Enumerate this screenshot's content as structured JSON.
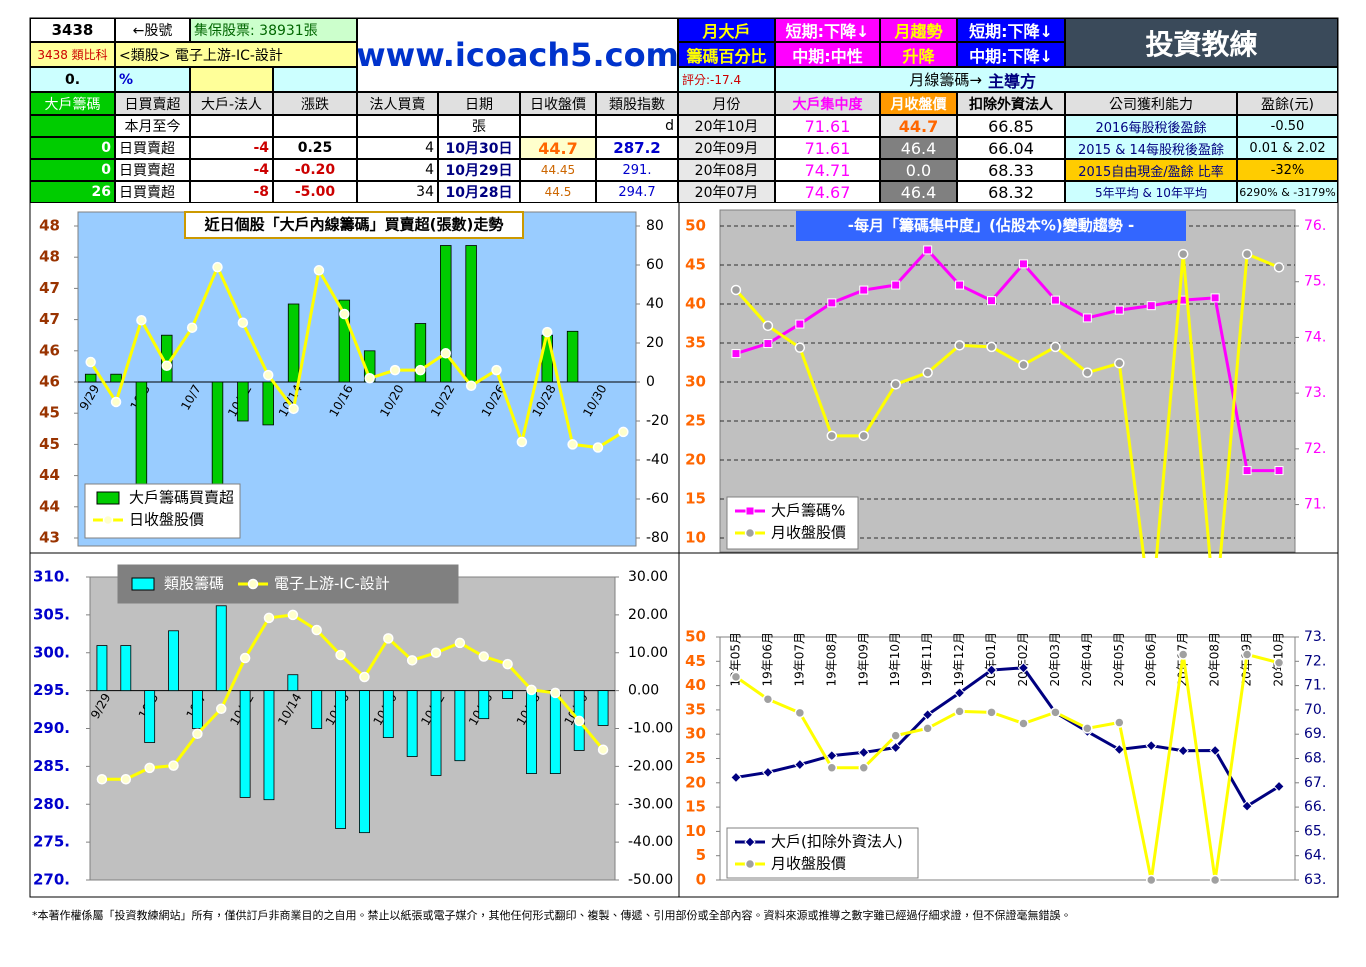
{
  "header": {
    "stock_id": "3438",
    "stock_id_label": "←股號",
    "shares": "集保股票: 38931張",
    "name": "3438 類比科",
    "sector": "<類股> 電子上游-IC-設計",
    "pct_value": "0.",
    "pct_unit": "%",
    "site": "www.icoach5.com",
    "monthly_holder": [
      "月大戶",
      "籌碼百分比"
    ],
    "holder_short": "短期:下降↓",
    "holder_mid": "中期:中性",
    "trend": [
      "月趨勢",
      "升降"
    ],
    "trend_short": "短期:下降↓",
    "trend_mid": "中期:下降↓",
    "brand": "投資教練",
    "score": "評分:-17.4",
    "monthly_chip": "月線籌碼→",
    "leader": "主導方"
  },
  "table_left": {
    "headers": [
      "大戶籌碼",
      "日買賣超",
      "大戶-法人",
      "漲跌",
      "法人買賣",
      "日期",
      "日收盤價",
      "類股指數"
    ],
    "month_to_date": "本月至今",
    "unit": "張",
    "index_unit": "d",
    "rows": [
      [
        "0",
        "日買賣超",
        "-4",
        "0.25",
        "4",
        "10月30日",
        "44.7",
        "287.2"
      ],
      [
        "0",
        "日買賣超",
        "-4",
        "-0.20",
        "4",
        "10月29日",
        "44.45",
        "291."
      ],
      [
        "26",
        "日買賣超",
        "-8",
        "-5.00",
        "34",
        "10月28日",
        "44.5",
        "294.7"
      ]
    ]
  },
  "table_right": {
    "headers": [
      "月份",
      "大戶集中度",
      "月收盤價",
      "扣除外資法人",
      "公司獲利能力",
      "盈餘(元)"
    ],
    "rows": [
      [
        "20年10月",
        "71.61",
        "44.7",
        "66.85",
        "2016每股稅後盈餘",
        "-0.50"
      ],
      [
        "20年09月",
        "71.61",
        "46.4",
        "66.04",
        "2015 & 14每股稅後盈餘",
        "0.01 & 2.02"
      ],
      [
        "20年08月",
        "74.71",
        "0.0",
        "68.33",
        "2015自由現金/盈餘 比率",
        "-32%"
      ],
      [
        "20年07月",
        "74.67",
        "46.4",
        "68.32",
        "5年平均 & 10年平均",
        "6290% & -3179%"
      ]
    ]
  },
  "chart_data": [
    {
      "type": "combo",
      "title": "近日個股「大戶內線籌碼」買賣超(張數)走勢",
      "categories": [
        "9/29",
        null,
        "10/5",
        null,
        "10/7",
        null,
        "10/12",
        null,
        "10/14",
        null,
        "10/16",
        null,
        "10/20",
        null,
        "10/22",
        null,
        "10/26",
        null,
        "10/28",
        null,
        "10/30",
        null
      ],
      "ylim": [
        43,
        48
      ],
      "yticks": [
        43,
        {
          "value": 43.5,
          "label": "44"
        },
        44,
        {
          "value": 44.5,
          "label": "45"
        },
        45,
        {
          "value": 45.5,
          "label": "46"
        },
        46,
        {
          "value": 46.5,
          "label": "47"
        },
        47,
        {
          "value": 47.5,
          "label": "48"
        },
        48
      ],
      "y2lim": [
        -80,
        80
      ],
      "y2ticks": [
        -80,
        -60,
        -40,
        -20,
        0,
        20,
        40,
        60,
        80
      ],
      "plot_background": "#99ccff",
      "series": [
        {
          "name": "大戶籌碼買賣超",
          "type": "bar",
          "axis": "y2",
          "color": "#00cc00",
          "values": [
            4,
            4,
            -66,
            24,
            0,
            -53,
            -20,
            -22,
            40,
            0,
            42,
            16,
            0,
            30,
            70,
            70,
            0,
            0,
            24,
            26,
            0,
            0
          ]
        },
        {
          "name": "日收盤股價",
          "type": "line",
          "axis": "y",
          "color": "#ffff00",
          "marker": "circle",
          "marker_color": "#ffffcc",
          "values": [
            45.82,
            45.18,
            46.49,
            45.76,
            46.37,
            47.34,
            46.45,
            45.61,
            45.07,
            47.29,
            46.59,
            45.56,
            45.69,
            45.69,
            45.96,
            45.44,
            45.69,
            44.54,
            46.3,
            44.5,
            44.45,
            44.7
          ]
        }
      ]
    },
    {
      "type": "combo",
      "title": "-每月「籌碼集中度」(佔股本%)變動趨勢 -",
      "ylim": [
        10,
        50
      ],
      "yticks": [
        10,
        15,
        20,
        25,
        30,
        35,
        40,
        45,
        50
      ],
      "y2lim": [
        70.4,
        76
      ],
      "y2ticks": [
        {
          "value": 71,
          "label": "71."
        },
        {
          "value": 72,
          "label": "72."
        },
        {
          "value": 73,
          "label": "73."
        },
        {
          "value": 74,
          "label": "74."
        },
        {
          "value": 75,
          "label": "75."
        },
        {
          "value": 76,
          "label": "76."
        }
      ],
      "plot_background": "#c0c0c0",
      "grid": true,
      "series": [
        {
          "name": "大戶籌碼%",
          "type": "line",
          "axis": "y2",
          "color": "#ff00ff",
          "marker": "square",
          "marker_color": "#ff00ff",
          "values": [
            73.71,
            73.89,
            74.24,
            74.62,
            74.85,
            74.94,
            75.57,
            74.94,
            74.66,
            75.32,
            74.67,
            74.35,
            74.49,
            74.57,
            74.67,
            74.71,
            71.61,
            71.61
          ]
        },
        {
          "name": "月收盤股價",
          "type": "line",
          "axis": "y",
          "color": "#ffff00",
          "marker": "circle",
          "marker_color": "#a0a0a0",
          "values": [
            41.8,
            37.2,
            34.4,
            23.1,
            23.1,
            29.7,
            31.2,
            34.7,
            34.5,
            32.2,
            34.5,
            31.2,
            32.4,
            0,
            46.4,
            0,
            46.4,
            44.7
          ]
        }
      ]
    },
    {
      "type": "combo",
      "categories": [
        "9/29",
        null,
        "10/5",
        null,
        "10/7",
        null,
        "10/12",
        null,
        "10/14",
        null,
        "10/16",
        null,
        "10/20",
        null,
        "10/22",
        null,
        "10/26",
        null,
        "10/28",
        null,
        "10/30",
        null
      ],
      "ylim": [
        270,
        310
      ],
      "yticks": [
        {
          "value": 270,
          "label": "270."
        },
        {
          "value": 275,
          "label": "275."
        },
        {
          "value": 280,
          "label": "280."
        },
        {
          "value": 285,
          "label": "285."
        },
        {
          "value": 290,
          "label": "290."
        },
        {
          "value": 295,
          "label": "295."
        },
        {
          "value": 300,
          "label": "300."
        },
        {
          "value": 305,
          "label": "305."
        },
        {
          "value": 310,
          "label": "310."
        }
      ],
      "y2lim": [
        -50,
        30
      ],
      "y2ticks": [
        {
          "value": -50,
          "label": "-50.00"
        },
        {
          "value": -40,
          "label": "-40.00"
        },
        {
          "value": -30,
          "label": "-30.00"
        },
        {
          "value": -20,
          "label": "-20.00"
        },
        {
          "value": -10,
          "label": "-10.00"
        },
        {
          "value": 0,
          "label": "0.00"
        },
        {
          "value": 10,
          "label": "10.00"
        },
        {
          "value": 20,
          "label": "20.00"
        },
        {
          "value": 30,
          "label": "30.00"
        }
      ],
      "plot_background": "#c0c0c0",
      "series": [
        {
          "name": "類股籌碼",
          "type": "bar",
          "axis": "y2",
          "color": "#00ffff",
          "values": [
            11.9,
            11.9,
            -13.7,
            15.8,
            -10.0,
            22.4,
            -28.2,
            -28.8,
            4.2,
            -10.0,
            -36.4,
            -37.5,
            -12.4,
            -17.4,
            -22.4,
            -18.5,
            -7.4,
            -2.1,
            -21.9,
            -21.9,
            -15.8,
            -9.2
          ]
        },
        {
          "name": "電子上游-IC-設計",
          "type": "line",
          "axis": "y",
          "color": "#ffff00",
          "marker": "circle",
          "marker_color": "#ffffcc",
          "values": [
            283.3,
            283.3,
            284.8,
            285.1,
            289.3,
            292.6,
            299.3,
            304.6,
            305.0,
            303.0,
            299.7,
            296.8,
            301.9,
            299.0,
            300.0,
            301.3,
            299.5,
            298.5,
            295.1,
            294.7,
            291.0,
            287.2
          ]
        }
      ]
    },
    {
      "type": "combo",
      "categories": [
        "19年05月",
        "19年06月",
        "19年07月",
        "19年08月",
        "19年09月",
        "19年10月",
        "19年11月",
        "19年12月",
        "20年01月",
        "20年02月",
        "20年03月",
        "20年04月",
        "20年05月",
        "20年06月",
        "20年07月",
        "20年08月",
        "20年09月",
        "20年10月"
      ],
      "ylim": [
        0,
        50
      ],
      "yticks": [
        0,
        5,
        10,
        15,
        20,
        25,
        30,
        35,
        40,
        45,
        50
      ],
      "y2lim": [
        63,
        73
      ],
      "y2ticks": [
        {
          "value": 63,
          "label": "63."
        },
        {
          "value": 64,
          "label": "64."
        },
        {
          "value": 65,
          "label": "65."
        },
        {
          "value": 66,
          "label": "66."
        },
        {
          "value": 67,
          "label": "67."
        },
        {
          "value": 68,
          "label": "68."
        },
        {
          "value": 69,
          "label": "69."
        },
        {
          "value": 70,
          "label": "70."
        },
        {
          "value": 71,
          "label": "71."
        },
        {
          "value": 72,
          "label": "72."
        },
        {
          "value": 73,
          "label": "73."
        }
      ],
      "plot_background": "#ffffff",
      "series": [
        {
          "name": "大戶(扣除外資法人)",
          "type": "line",
          "axis": "y2",
          "color": "#000080",
          "marker": "diamond",
          "marker_color": "#000080",
          "values": [
            67.22,
            67.43,
            67.75,
            68.12,
            68.25,
            68.45,
            69.8,
            70.7,
            71.64,
            71.73,
            69.89,
            69.11,
            68.37,
            68.53,
            68.32,
            68.33,
            66.04,
            66.85
          ]
        },
        {
          "name": "月收盤股價",
          "type": "line",
          "axis": "y",
          "color": "#ffff00",
          "marker": "circle",
          "marker_color": "#a0a0a0",
          "values": [
            41.8,
            37.2,
            34.4,
            23.1,
            23.1,
            29.7,
            31.2,
            34.7,
            34.5,
            32.2,
            34.5,
            31.2,
            32.4,
            0,
            46.4,
            0,
            46.4,
            44.7
          ]
        }
      ]
    }
  ],
  "footer": "*本著作權係屬「投資教練網站」所有，僅供訂戶非商業目的之自用。禁止以紙張或電子媒介，其他任何形式翻印、複製、傳遞、引用部份或全部內容。資料來源或推導之數字雖已經過仔細求證，但不保證毫無錯誤。"
}
